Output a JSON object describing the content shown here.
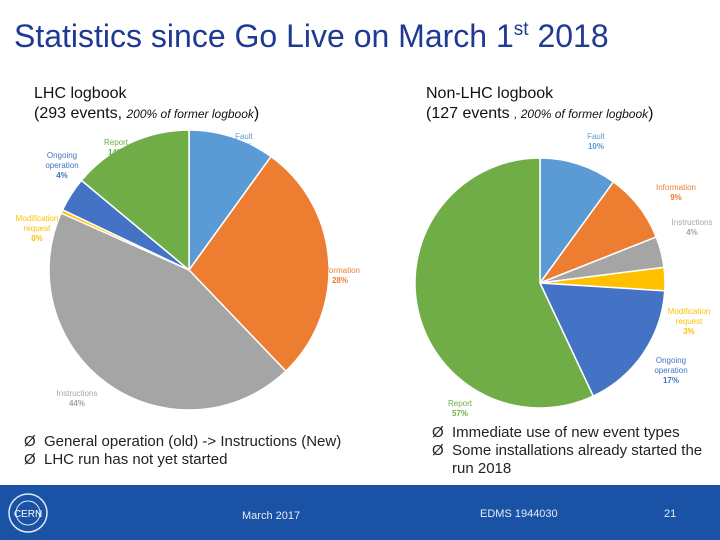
{
  "title": {
    "main": "Statistics since Go Live on March 1",
    "sup": "st",
    "tail": " 2018"
  },
  "left": {
    "heading": "LHC logbook",
    "sub_a": "(293 events, ",
    "sub_b": "200% of former logbook",
    "sub_c": ")",
    "bullets": [
      "General operation (old) -> Instructions (New)",
      "LHC run has not yet started"
    ]
  },
  "right": {
    "heading": "Non-LHC logbook",
    "sub_a": "(127 events ",
    "sub_b": ", 200% of former logbook",
    "sub_c": ")",
    "bullets": [
      "Immediate use of new event types",
      "Some installations already started the run 2018"
    ]
  },
  "bullet_arrow": "Ø",
  "footer": {
    "date": "March 2017",
    "edms": "EDMS 1944030",
    "page": "21",
    "logo_text": "CERN"
  },
  "chart_data": [
    {
      "type": "pie",
      "title": "LHC logbook",
      "slices": [
        {
          "name": "Fault",
          "value": 10,
          "label": "10%",
          "color": "#5b9bd5"
        },
        {
          "name": "Information",
          "value": 28,
          "label": "28%",
          "color": "#ed7d31"
        },
        {
          "name": "Instructions",
          "value": 44,
          "label": "44%",
          "color": "#a5a5a5"
        },
        {
          "name": "Modification request",
          "value": 0.4,
          "label": "0%",
          "color": "#ffc000"
        },
        {
          "name": "Ongoing operation",
          "value": 4,
          "label": "4%",
          "color": "#4472c4"
        },
        {
          "name": "Report",
          "value": 14,
          "label": "14%",
          "color": "#70ad47"
        }
      ]
    },
    {
      "type": "pie",
      "title": "Non-LHC logbook",
      "slices": [
        {
          "name": "Fault",
          "value": 10,
          "label": "10%",
          "color": "#5b9bd5"
        },
        {
          "name": "Information",
          "value": 9,
          "label": "9%",
          "color": "#ed7d31"
        },
        {
          "name": "Instructions",
          "value": 4,
          "label": "4%",
          "color": "#a5a5a5"
        },
        {
          "name": "Modification request",
          "value": 3,
          "label": "3%",
          "color": "#ffc000"
        },
        {
          "name": "Ongoing operation",
          "value": 17,
          "label": "17%",
          "color": "#4472c4"
        },
        {
          "name": "Report",
          "value": 57,
          "label": "57%",
          "color": "#70ad47"
        }
      ]
    }
  ]
}
